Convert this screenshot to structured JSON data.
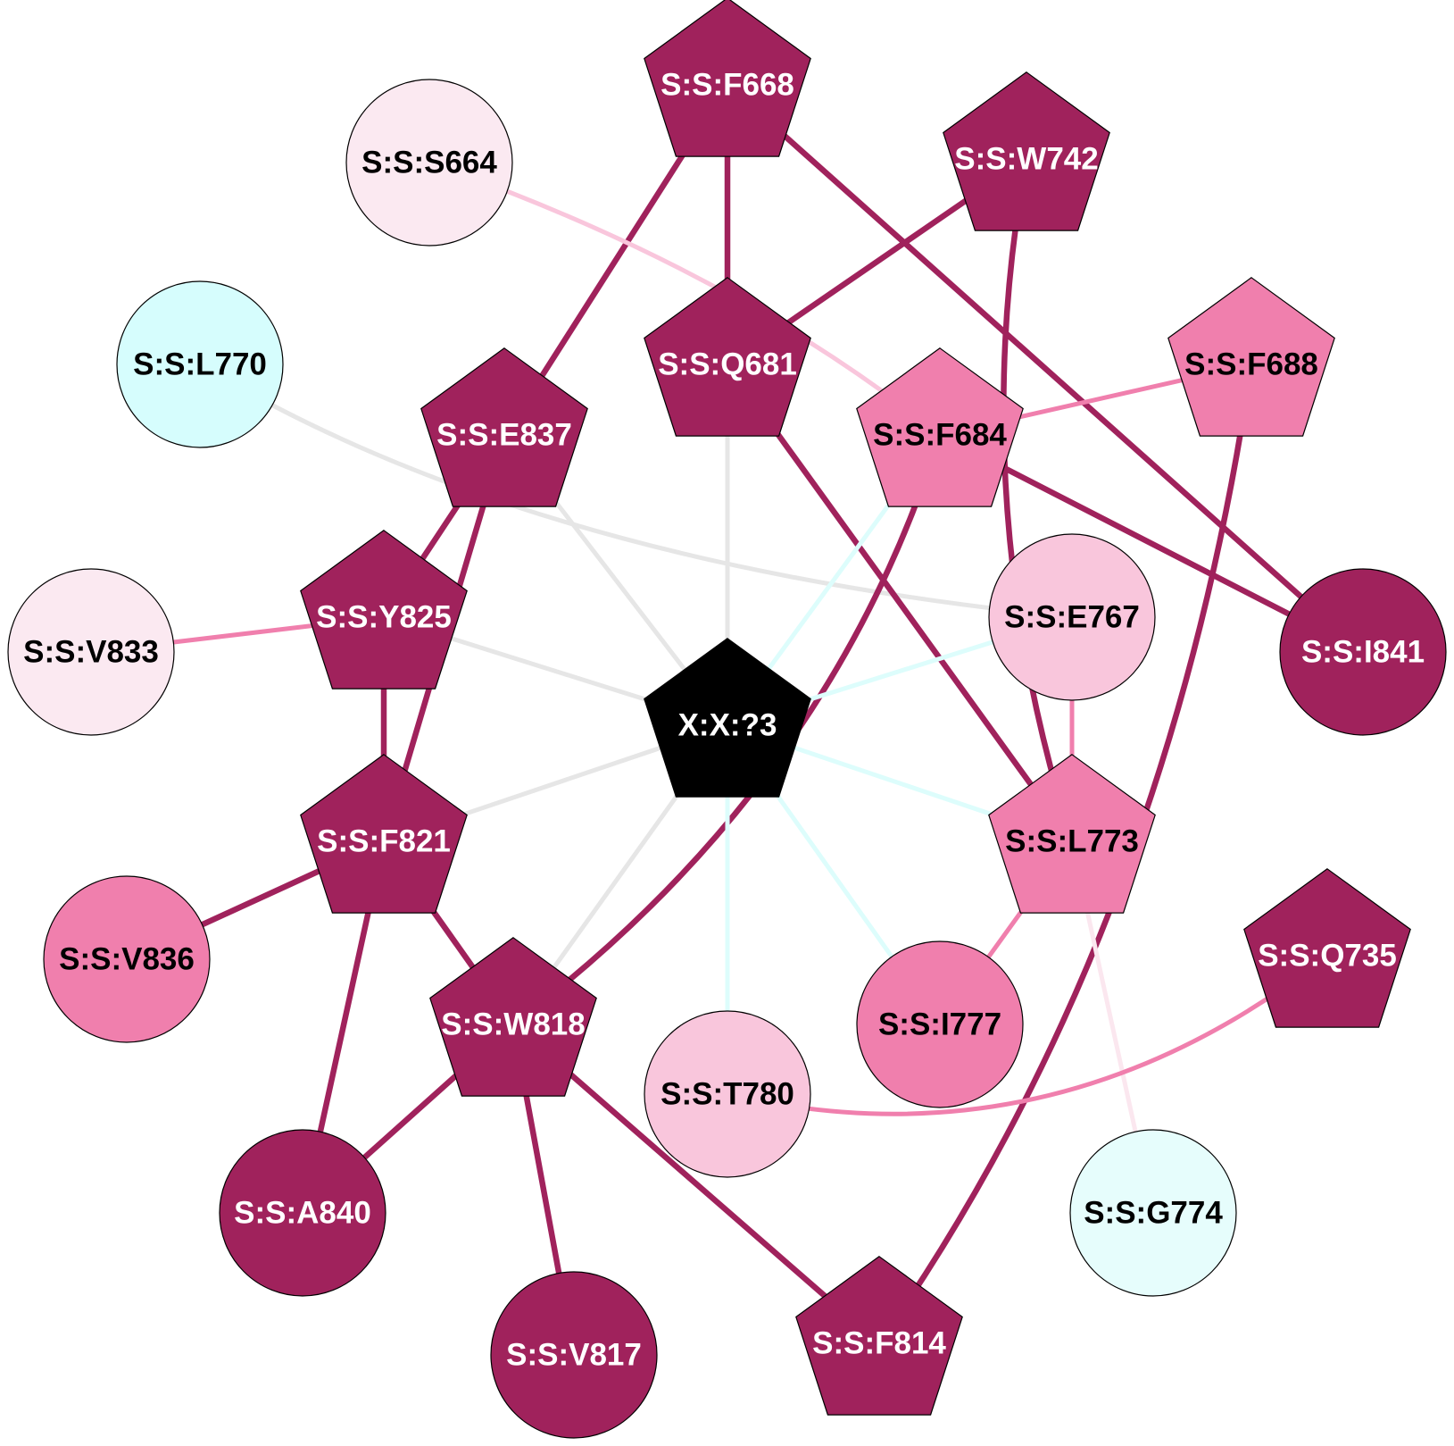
{
  "colors": {
    "dark": "#A0225C",
    "medium": "#F07FAD",
    "light": "#F9C6DC",
    "pale": "#FBE9F1",
    "cyan": "#D6FDFD",
    "cyan_pale": "#E6FDFC",
    "center": "#000000",
    "grey_edge": "#E6E6E6",
    "cyan_edge": "#DDFDFC",
    "pale_pink_edge": "#FBE7EF"
  },
  "nodes": [
    {
      "id": "X:X:?3",
      "label": "X:X:?3",
      "shape": "pentagon",
      "color": "center",
      "text": "white"
    },
    {
      "id": "S:S:F668",
      "label": "S:S:F668",
      "shape": "pentagon",
      "color": "dark",
      "text": "white"
    },
    {
      "id": "S:S:S664",
      "label": "S:S:S664",
      "shape": "circle",
      "color": "pale",
      "text": "black"
    },
    {
      "id": "S:S:W742",
      "label": "S:S:W742",
      "shape": "pentagon",
      "color": "dark",
      "text": "white"
    },
    {
      "id": "S:S:L770",
      "label": "S:S:L770",
      "shape": "circle",
      "color": "cyan",
      "text": "black"
    },
    {
      "id": "S:S:Q681",
      "label": "S:S:Q681",
      "shape": "pentagon",
      "color": "dark",
      "text": "white"
    },
    {
      "id": "S:S:F688",
      "label": "S:S:F688",
      "shape": "pentagon",
      "color": "medium",
      "text": "black"
    },
    {
      "id": "S:S:E837",
      "label": "S:S:E837",
      "shape": "pentagon",
      "color": "dark",
      "text": "white"
    },
    {
      "id": "S:S:F684",
      "label": "S:S:F684",
      "shape": "pentagon",
      "color": "medium",
      "text": "black"
    },
    {
      "id": "S:S:Y825",
      "label": "S:S:Y825",
      "shape": "pentagon",
      "color": "dark",
      "text": "white"
    },
    {
      "id": "S:S:E767",
      "label": "S:S:E767",
      "shape": "circle",
      "color": "light",
      "text": "black"
    },
    {
      "id": "S:S:V833",
      "label": "S:S:V833",
      "shape": "circle",
      "color": "pale",
      "text": "black"
    },
    {
      "id": "S:S:I841",
      "label": "S:S:I841",
      "shape": "circle",
      "color": "dark",
      "text": "white"
    },
    {
      "id": "S:S:F821",
      "label": "S:S:F821",
      "shape": "pentagon",
      "color": "dark",
      "text": "white"
    },
    {
      "id": "S:S:L773",
      "label": "S:S:L773",
      "shape": "pentagon",
      "color": "medium",
      "text": "black"
    },
    {
      "id": "S:S:V836",
      "label": "S:S:V836",
      "shape": "circle",
      "color": "medium",
      "text": "black"
    },
    {
      "id": "S:S:Q735",
      "label": "S:S:Q735",
      "shape": "pentagon",
      "color": "dark",
      "text": "white"
    },
    {
      "id": "S:S:W818",
      "label": "S:S:W818",
      "shape": "pentagon",
      "color": "dark",
      "text": "white"
    },
    {
      "id": "S:S:I777",
      "label": "S:S:I777",
      "shape": "circle",
      "color": "medium",
      "text": "black"
    },
    {
      "id": "S:S:T780",
      "label": "S:S:T780",
      "shape": "circle",
      "color": "light",
      "text": "black"
    },
    {
      "id": "S:S:A840",
      "label": "S:S:A840",
      "shape": "circle",
      "color": "dark",
      "text": "white"
    },
    {
      "id": "S:S:G774",
      "label": "S:S:G774",
      "shape": "circle",
      "color": "cyan_pale",
      "text": "black"
    },
    {
      "id": "S:S:V817",
      "label": "S:S:V817",
      "shape": "circle",
      "color": "dark",
      "text": "white"
    },
    {
      "id": "S:S:F814",
      "label": "S:S:F814",
      "shape": "pentagon",
      "color": "dark",
      "text": "white"
    }
  ],
  "edges": [
    {
      "source": "S:S:F668",
      "target": "S:S:Q681",
      "color": "dark"
    },
    {
      "source": "S:S:F668",
      "target": "S:S:E837",
      "color": "dark"
    },
    {
      "source": "S:S:F668",
      "target": "S:S:I841",
      "color": "dark"
    },
    {
      "source": "S:S:S664",
      "target": "S:S:F684",
      "color": "light"
    },
    {
      "source": "S:S:W742",
      "target": "S:S:Q681",
      "color": "dark"
    },
    {
      "source": "S:S:W742",
      "target": "S:S:L773",
      "color": "dark"
    },
    {
      "source": "S:S:L770",
      "target": "S:S:E767",
      "color": "grey_edge"
    },
    {
      "source": "S:S:Q681",
      "target": "X:X:?3",
      "color": "grey_edge"
    },
    {
      "source": "S:S:Q681",
      "target": "S:S:L773",
      "color": "dark"
    },
    {
      "source": "S:S:F688",
      "target": "S:S:F684",
      "color": "medium"
    },
    {
      "source": "S:S:F688",
      "target": "S:S:F814",
      "color": "dark"
    },
    {
      "source": "S:S:F684",
      "target": "S:S:I841",
      "color": "dark"
    },
    {
      "source": "S:S:F684",
      "target": "X:X:?3",
      "color": "cyan_edge"
    },
    {
      "source": "S:S:F684",
      "target": "S:S:W818",
      "color": "dark"
    },
    {
      "source": "S:S:E837",
      "target": "X:X:?3",
      "color": "grey_edge"
    },
    {
      "source": "S:S:E837",
      "target": "S:S:Y825",
      "color": "dark"
    },
    {
      "source": "S:S:E837",
      "target": "S:S:F821",
      "color": "dark"
    },
    {
      "source": "S:S:Y825",
      "target": "S:S:V833",
      "color": "medium"
    },
    {
      "source": "S:S:Y825",
      "target": "X:X:?3",
      "color": "grey_edge"
    },
    {
      "source": "S:S:Y825",
      "target": "S:S:F821",
      "color": "dark"
    },
    {
      "source": "S:S:E767",
      "target": "X:X:?3",
      "color": "cyan_edge"
    },
    {
      "source": "S:S:E767",
      "target": "S:S:L773",
      "color": "medium"
    },
    {
      "source": "X:X:?3",
      "target": "S:S:F821",
      "color": "grey_edge"
    },
    {
      "source": "X:X:?3",
      "target": "S:S:W818",
      "color": "grey_edge"
    },
    {
      "source": "X:X:?3",
      "target": "S:S:L773",
      "color": "cyan_edge"
    },
    {
      "source": "X:X:?3",
      "target": "S:S:I777",
      "color": "cyan_edge"
    },
    {
      "source": "X:X:?3",
      "target": "S:S:T780",
      "color": "cyan_edge"
    },
    {
      "source": "S:S:F821",
      "target": "S:S:V836",
      "color": "dark"
    },
    {
      "source": "S:S:F821",
      "target": "S:S:W818",
      "color": "dark"
    },
    {
      "source": "S:S:F821",
      "target": "S:S:A840",
      "color": "dark"
    },
    {
      "source": "S:S:L773",
      "target": "S:S:I777",
      "color": "medium"
    },
    {
      "source": "S:S:L773",
      "target": "S:S:G774",
      "color": "pale_pink_edge"
    },
    {
      "source": "S:S:Q735",
      "target": "S:S:T780",
      "color": "medium"
    },
    {
      "source": "S:S:W818",
      "target": "S:S:A840",
      "color": "dark"
    },
    {
      "source": "S:S:W818",
      "target": "S:S:V817",
      "color": "dark"
    },
    {
      "source": "S:S:W818",
      "target": "S:S:F814",
      "color": "dark"
    }
  ]
}
